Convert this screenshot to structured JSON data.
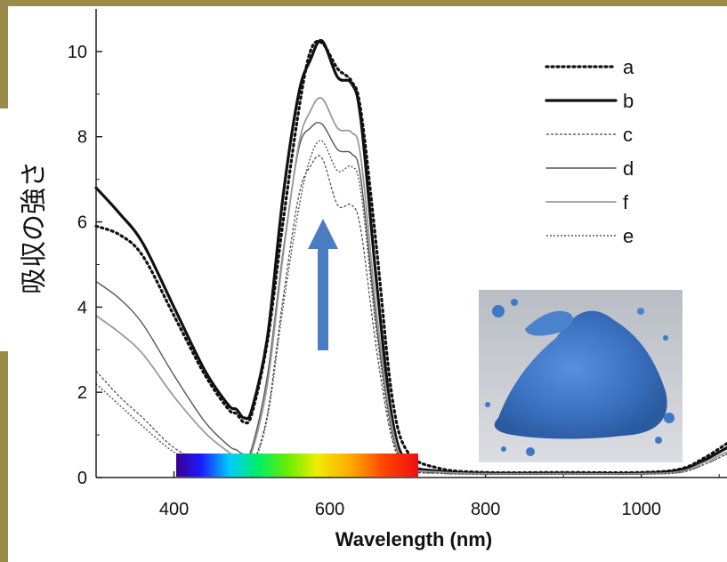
{
  "chart_data": {
    "type": "line",
    "title": "",
    "xlabel": "Wavelength (nm)",
    "ylabel": "吸収の強さ",
    "xlim": [
      300,
      1110
    ],
    "ylim": [
      0,
      11
    ],
    "xticks": [
      400,
      600,
      800,
      1000
    ],
    "yticks": [
      0,
      2,
      4,
      6,
      8,
      10
    ],
    "legend_position": "top-right",
    "inset": "photo of blue pigment powder",
    "annotation": "blue upward arrow",
    "spectrum_bar_range": [
      400,
      700
    ],
    "series": [
      {
        "name": "a",
        "style": "dotted",
        "color": "#111111",
        "x": [
          300,
          330,
          360,
          400,
          440,
          470,
          480,
          490,
          500,
          520,
          540,
          560,
          575,
          590,
          610,
          628,
          640,
          660,
          680,
          700,
          740,
          800,
          900,
          1000,
          1050,
          1080,
          1110
        ],
        "y": [
          5.9,
          5.7,
          5.2,
          3.8,
          2.4,
          1.6,
          1.5,
          1.3,
          1.5,
          3.2,
          6.0,
          8.6,
          10.0,
          10.2,
          9.6,
          9.3,
          8.6,
          5.4,
          1.9,
          0.6,
          0.22,
          0.12,
          0.12,
          0.12,
          0.2,
          0.45,
          0.8
        ]
      },
      {
        "name": "b",
        "style": "solid-thick",
        "color": "#111111",
        "x": [
          300,
          330,
          360,
          400,
          440,
          470,
          480,
          490,
          500,
          520,
          540,
          560,
          575,
          590,
          610,
          628,
          640,
          660,
          680,
          700,
          740,
          800,
          900,
          1000,
          1050,
          1080,
          1110
        ],
        "y": [
          6.8,
          6.2,
          5.5,
          4.0,
          2.5,
          1.7,
          1.6,
          1.4,
          1.6,
          3.3,
          6.6,
          9.0,
          9.8,
          10.25,
          9.4,
          9.25,
          8.4,
          4.6,
          1.4,
          0.35,
          0.15,
          0.1,
          0.1,
          0.1,
          0.18,
          0.4,
          0.7
        ]
      },
      {
        "name": "c",
        "style": "dashed-thin",
        "color": "#444444",
        "x": [
          300,
          330,
          360,
          400,
          440,
          470,
          480,
          490,
          500,
          520,
          540,
          560,
          575,
          590,
          610,
          628,
          640,
          660,
          680,
          700,
          740,
          800,
          900,
          1000,
          1050,
          1080,
          1110
        ],
        "y": [
          2.5,
          1.9,
          1.4,
          0.7,
          0.35,
          0.2,
          0.2,
          0.15,
          0.25,
          1.5,
          4.2,
          6.6,
          7.3,
          7.5,
          6.4,
          6.4,
          5.8,
          3.0,
          0.9,
          0.2,
          0.1,
          0.08,
          0.08,
          0.08,
          0.12,
          0.3,
          0.55
        ]
      },
      {
        "name": "d",
        "style": "solid-thin",
        "color": "#555555",
        "x": [
          300,
          330,
          360,
          400,
          440,
          470,
          480,
          490,
          500,
          520,
          540,
          560,
          575,
          590,
          610,
          628,
          640,
          660,
          680,
          700,
          740,
          800,
          900,
          1000,
          1050,
          1080,
          1110
        ],
        "y": [
          4.6,
          4.2,
          3.6,
          2.4,
          1.3,
          0.75,
          0.65,
          0.55,
          0.7,
          2.4,
          5.3,
          7.7,
          8.2,
          8.3,
          7.7,
          7.6,
          7.0,
          3.6,
          1.1,
          0.25,
          0.12,
          0.09,
          0.09,
          0.09,
          0.14,
          0.35,
          0.6
        ]
      },
      {
        "name": "f",
        "style": "solid-light",
        "color": "#999999",
        "x": [
          300,
          330,
          360,
          400,
          440,
          470,
          480,
          490,
          500,
          520,
          540,
          560,
          575,
          590,
          610,
          628,
          640,
          660,
          680,
          700,
          740,
          800,
          900,
          1000,
          1050,
          1080,
          1110
        ],
        "y": [
          3.8,
          3.4,
          2.9,
          1.9,
          1.05,
          0.6,
          0.5,
          0.45,
          0.6,
          2.2,
          5.2,
          7.8,
          8.6,
          8.9,
          8.2,
          8.1,
          7.5,
          3.9,
          1.2,
          0.28,
          0.13,
          0.09,
          0.09,
          0.09,
          0.14,
          0.35,
          0.6
        ]
      },
      {
        "name": "e",
        "style": "dotted-thin",
        "color": "#555555",
        "x": [
          300,
          330,
          360,
          400,
          440,
          470,
          480,
          490,
          500,
          520,
          540,
          560,
          575,
          590,
          610,
          628,
          640,
          660,
          680,
          700,
          740,
          800,
          900,
          1000,
          1050,
          1080,
          1110
        ],
        "y": [
          2.2,
          1.7,
          1.2,
          0.6,
          0.3,
          0.18,
          0.18,
          0.14,
          0.22,
          1.4,
          4.0,
          6.3,
          7.5,
          7.9,
          7.2,
          7.3,
          6.7,
          3.4,
          1.0,
          0.22,
          0.1,
          0.08,
          0.08,
          0.08,
          0.12,
          0.3,
          0.55
        ]
      }
    ]
  },
  "colors": {
    "frame": "#9a8a4a",
    "arrow": "#4a7cc0",
    "powder": "#3d74c4"
  }
}
